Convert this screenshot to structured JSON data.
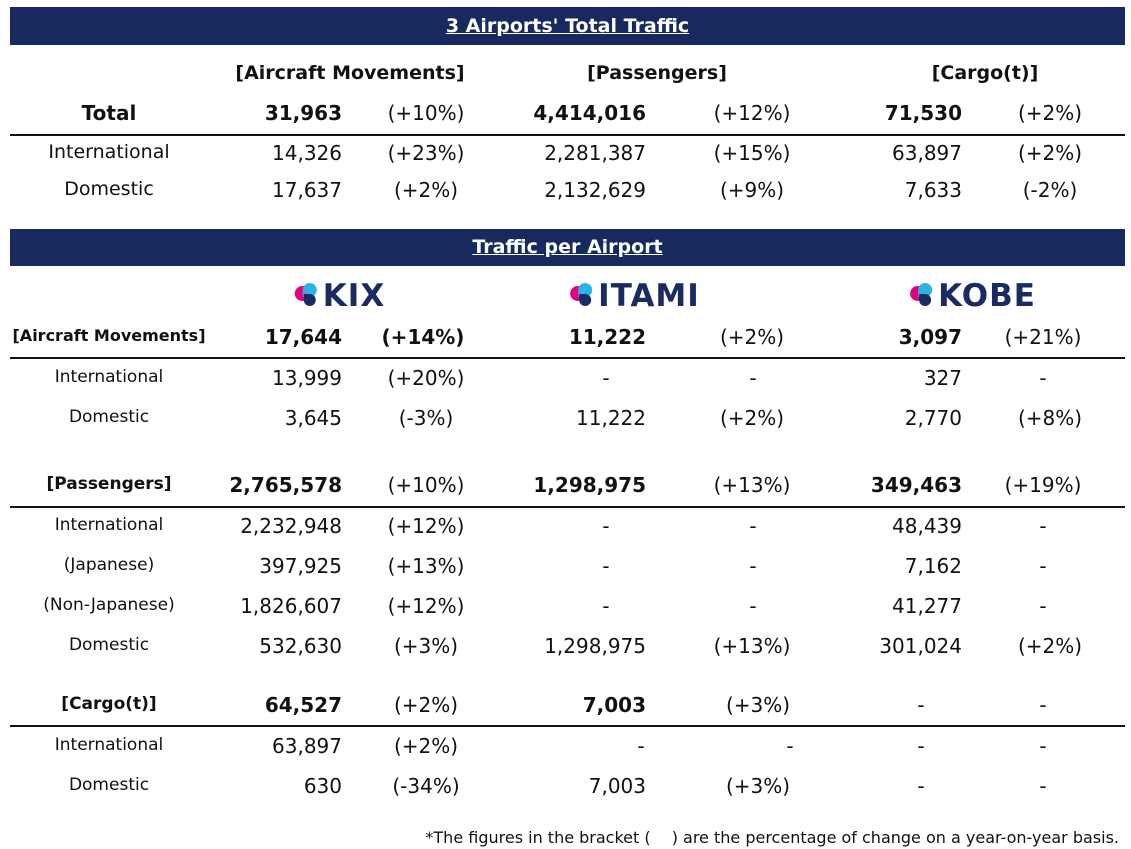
{
  "total_traffic": {
    "title": "3 Airports' Total Traffic",
    "headers": [
      "[Aircraft Movements]",
      "[Passengers]",
      "[Cargo(t)]"
    ],
    "rows": [
      {
        "label": "Total",
        "am": "31,963",
        "am_pct": "(+10%)",
        "pax": "4,414,016",
        "pax_pct": "(+12%)",
        "cargo": "71,530",
        "cargo_pct": "(+2%)"
      },
      {
        "label": "International",
        "am": "14,326",
        "am_pct": "(+23%)",
        "pax": "2,281,387",
        "pax_pct": "(+15%)",
        "cargo": "63,897",
        "cargo_pct": "(+2%)"
      },
      {
        "label": "Domestic",
        "am": "17,637",
        "am_pct": "(+2%)",
        "pax": "2,132,629",
        "pax_pct": "(+9%)",
        "cargo": "7,633",
        "cargo_pct": "(-2%)"
      }
    ]
  },
  "per_airport": {
    "title": "Traffic per Airport",
    "logos": [
      {
        "text": "KIX",
        "icon": "airport-pin-logo-icon"
      },
      {
        "text": "ITAMI",
        "icon": "airport-pin-logo-icon"
      },
      {
        "text": "KOBE",
        "icon": "airport-pin-logo-icon"
      }
    ],
    "aircraft": {
      "header": "[Aircraft Movements]",
      "total": [
        "17,644",
        "(+14%)",
        "11,222",
        "(+2%)",
        "3,097",
        "(+21%)"
      ],
      "rows": [
        {
          "label": "International",
          "cells": [
            "13,999",
            "(+20%)",
            "-",
            "-",
            "327",
            "-"
          ]
        },
        {
          "label": "Domestic",
          "cells": [
            "3,645",
            "(-3%)",
            "11,222",
            "(+2%)",
            "2,770",
            "(+8%)"
          ]
        }
      ]
    },
    "passengers": {
      "header": "[Passengers]",
      "total": [
        "2,765,578",
        "(+10%)",
        "1,298,975",
        "(+13%)",
        "349,463",
        "(+19%)"
      ],
      "rows": [
        {
          "label": "International",
          "cells": [
            "2,232,948",
            "(+12%)",
            "-",
            "-",
            "48,439",
            "-"
          ]
        },
        {
          "label": "(Japanese)",
          "cells": [
            "397,925",
            "(+13%)",
            "-",
            "-",
            "7,162",
            "-"
          ]
        },
        {
          "label": "(Non-Japanese)",
          "cells": [
            "1,826,607",
            "(+12%)",
            "-",
            "-",
            "41,277",
            "-"
          ]
        },
        {
          "label": "Domestic",
          "cells": [
            "532,630",
            "(+3%)",
            "1,298,975",
            "(+13%)",
            "301,024",
            "(+2%)"
          ]
        }
      ]
    },
    "cargo": {
      "header": "[Cargo(t)]",
      "total": [
        "64,527",
        "(+2%)",
        "7,003",
        "(+3%)",
        "-",
        "-"
      ],
      "rows": [
        {
          "label": "International",
          "cells": [
            "63,897",
            "(+2%)",
            "-",
            "-",
            "-",
            "-"
          ]
        },
        {
          "label": "Domestic",
          "cells": [
            "630",
            "(-34%)",
            "7,003",
            "(+3%)",
            "-",
            "-"
          ]
        }
      ]
    }
  },
  "footnote": "*The figures in the bracket (　 ) are the percentage of change on a year-on-year basis."
}
